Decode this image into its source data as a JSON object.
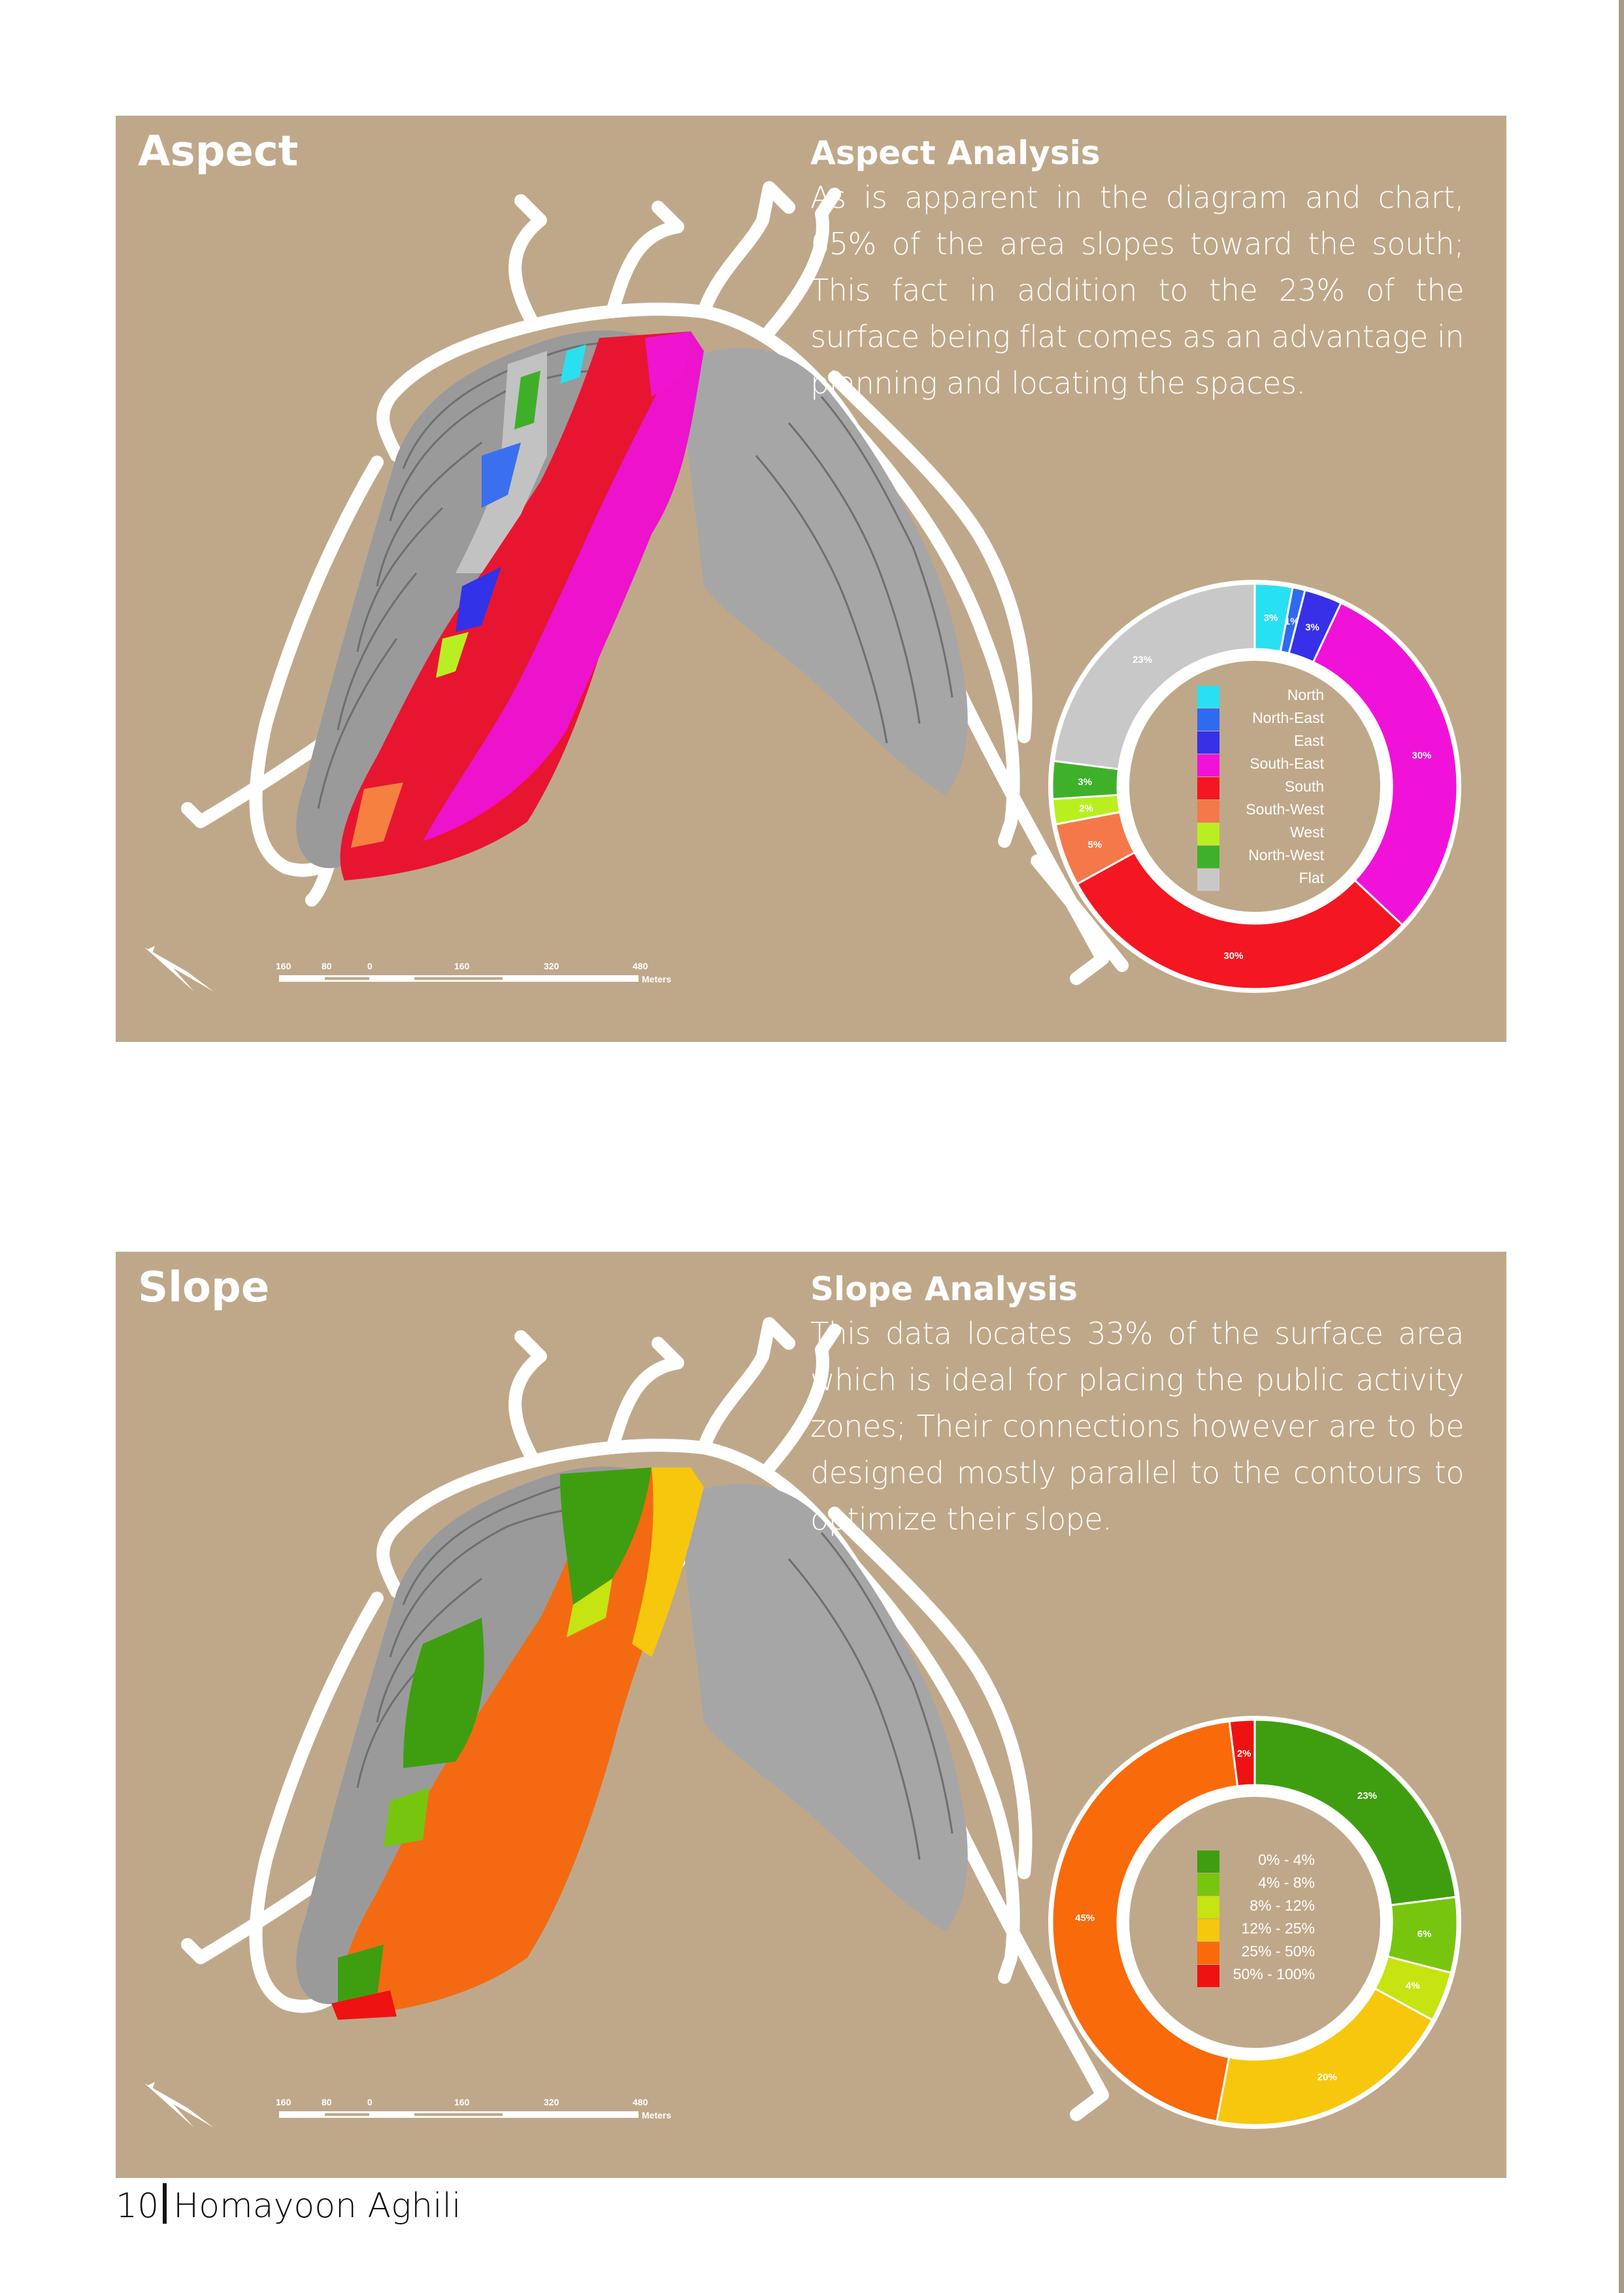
{
  "aspect": {
    "title": "Aspect",
    "analysis_title": "Aspect Analysis",
    "analysis_text": "As is apparent in the diagram and chart, 65% of the area slopes toward the south; This fact in addition to the 23% of the surface being flat comes as an advantage in planning and locating the spaces.",
    "legend": [
      {
        "label": "North",
        "color": "#29e0f2"
      },
      {
        "label": "North-East",
        "color": "#2f6bf0"
      },
      {
        "label": "East",
        "color": "#3730e8"
      },
      {
        "label": "South-East",
        "color": "#f012d8"
      },
      {
        "label": "South",
        "color": "#f41620"
      },
      {
        "label": "South-West",
        "color": "#f5784a"
      },
      {
        "label": "West",
        "color": "#b9ef20"
      },
      {
        "label": "North-West",
        "color": "#3fb02a"
      },
      {
        "label": "Flat",
        "color": "#c8c8c8"
      }
    ],
    "chart_data": {
      "type": "pie",
      "variant": "donut",
      "categories": [
        "North",
        "North-East",
        "East",
        "South-East",
        "South",
        "South-West",
        "West",
        "North-West",
        "Flat"
      ],
      "values": [
        3,
        1,
        3,
        30,
        30,
        5,
        2,
        3,
        23
      ],
      "labels": [
        "3%",
        "1%",
        "3%",
        "30%",
        "30%",
        "5%",
        "2%",
        "3%",
        "23%"
      ],
      "colors": [
        "#29e0f2",
        "#2f6bf0",
        "#3730e8",
        "#f012d8",
        "#f41620",
        "#f5784a",
        "#b9ef20",
        "#3fb02a",
        "#c8c8c8"
      ],
      "legend_position": "center"
    }
  },
  "slope": {
    "title": "Slope",
    "analysis_title": "Slope Analysis",
    "analysis_text": "This data locates 33% of the surface area which is ideal for placing the public activity zones; Their connections however are to be designed mostly parallel to the contours to optimize their slope.",
    "legend": [
      {
        "label": "0% - 4%",
        "color": "#3e9e10"
      },
      {
        "label": "4% - 8%",
        "color": "#78c510"
      },
      {
        "label": "8% - 12%",
        "color": "#c6e312"
      },
      {
        "label": "12% - 25%",
        "color": "#f7c70e"
      },
      {
        "label": "25% - 50%",
        "color": "#f86a0a"
      },
      {
        "label": "50% - 100%",
        "color": "#ee1212"
      }
    ],
    "chart_data": {
      "type": "pie",
      "variant": "donut",
      "categories": [
        "0% - 4%",
        "4% - 8%",
        "8% - 12%",
        "12% - 25%",
        "25% - 50%",
        "50% - 100%"
      ],
      "values": [
        23,
        6,
        4,
        20,
        45,
        2
      ],
      "labels": [
        "23%",
        "6%",
        "4%",
        "20%",
        "45%",
        "2%"
      ],
      "colors": [
        "#3e9e10",
        "#78c510",
        "#c6e312",
        "#f7c70e",
        "#f86a0a",
        "#ee1212"
      ],
      "legend_position": "center"
    }
  },
  "scale_bar": {
    "ticks": [
      "160",
      "80",
      "0",
      "160",
      "320",
      "480"
    ],
    "unit": "Meters"
  },
  "footer": {
    "page_number": "10",
    "author": "Homayoon Aghili"
  }
}
